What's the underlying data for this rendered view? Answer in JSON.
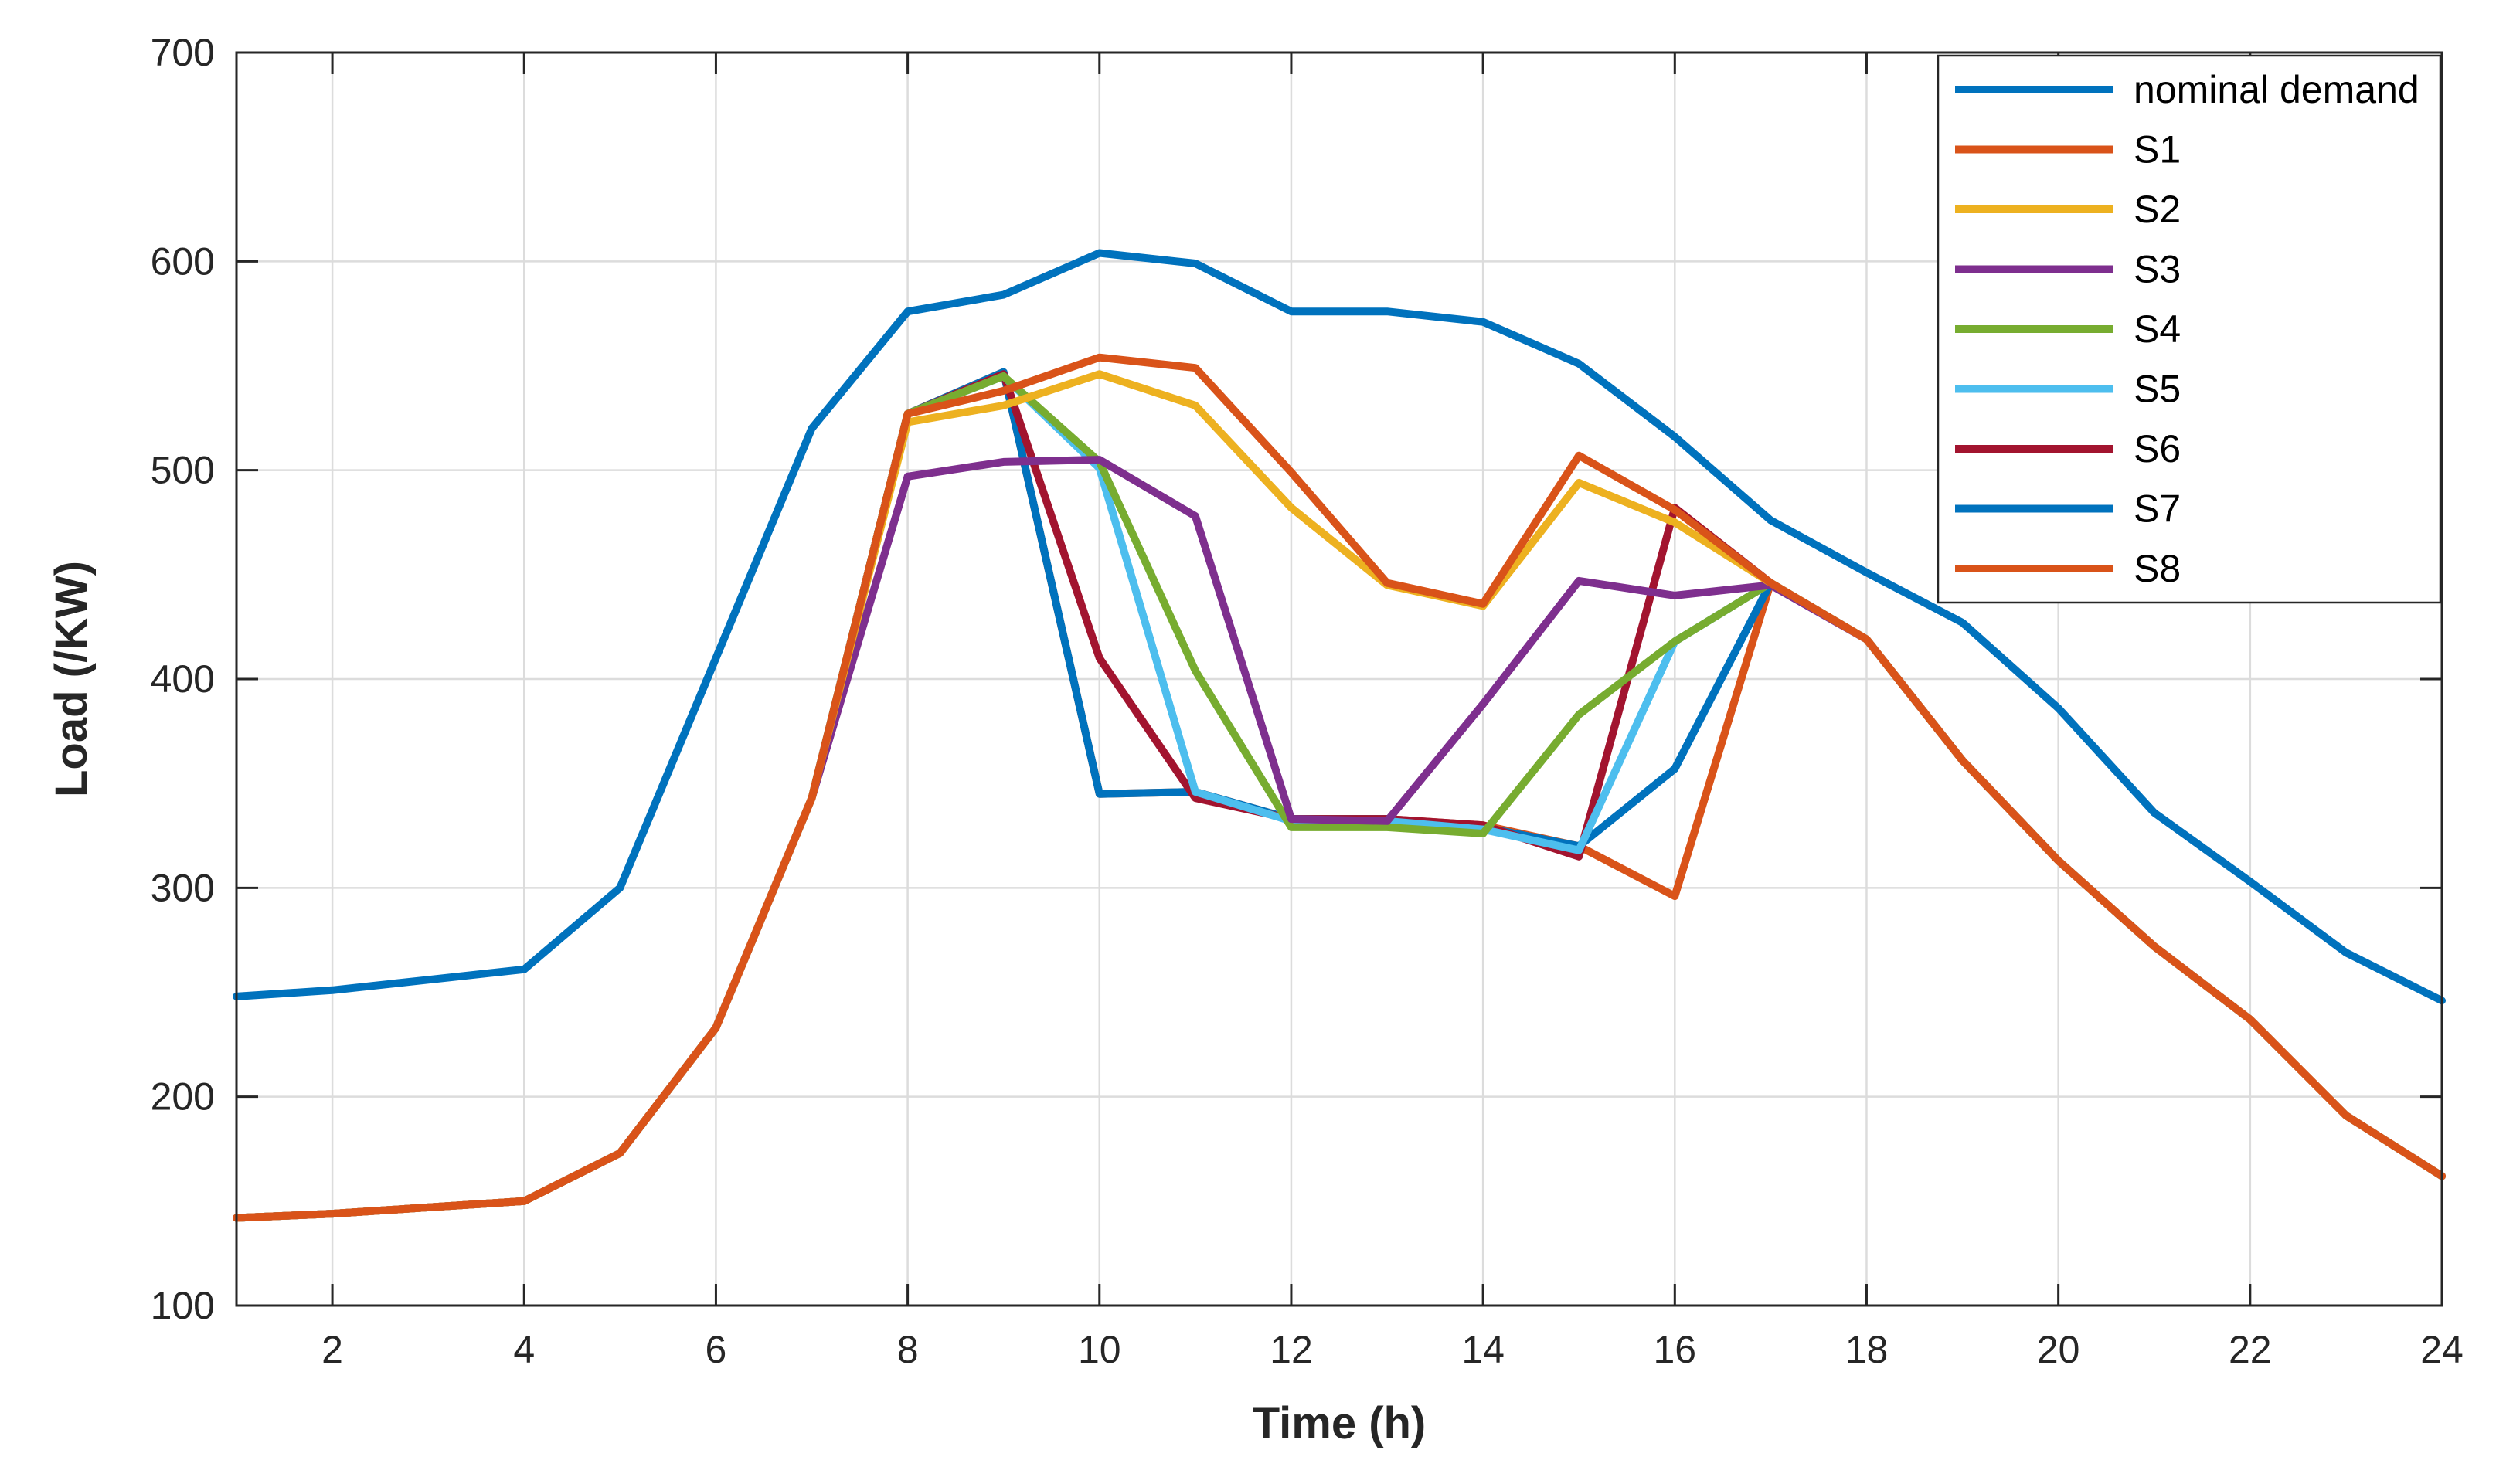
{
  "chart_data": {
    "type": "line",
    "title": "",
    "xlabel": "Time (h)",
    "ylabel": "Load (/KW)",
    "xlim": [
      1,
      24
    ],
    "ylim": [
      100,
      700
    ],
    "xticks": [
      2,
      4,
      6,
      8,
      10,
      12,
      14,
      16,
      18,
      20,
      22,
      24
    ],
    "yticks": [
      100,
      200,
      300,
      400,
      500,
      600,
      700
    ],
    "grid": true,
    "legend_position": "top-right",
    "x": [
      1,
      2,
      3,
      4,
      5,
      6,
      7,
      8,
      9,
      10,
      11,
      12,
      13,
      14,
      15,
      16,
      17,
      18,
      19,
      20,
      21,
      22,
      23,
      24
    ],
    "series": [
      {
        "name": "nominal demand",
        "color": "#0072BD",
        "values": [
          248,
          251,
          256,
          261,
          300,
          410,
          520,
          576,
          584,
          604,
          599,
          576,
          576,
          571,
          551,
          516,
          476,
          451,
          427,
          386,
          336,
          303,
          269,
          246
        ]
      },
      {
        "name": "S1",
        "color": "#D95319",
        "values": [
          142,
          144,
          147,
          150,
          173,
          233,
          343,
          527,
          538,
          554,
          549,
          499,
          446,
          436,
          507,
          481,
          446,
          419,
          361,
          313,
          272,
          237,
          191,
          162
        ]
      },
      {
        "name": "S2",
        "color": "#EDB120",
        "values": [
          142,
          144,
          147,
          150,
          173,
          233,
          343,
          523,
          531,
          546,
          531,
          482,
          445,
          435,
          494,
          475,
          446,
          419,
          361,
          313,
          272,
          237,
          191,
          162
        ]
      },
      {
        "name": "S3",
        "color": "#7E2F8E",
        "values": [
          142,
          144,
          147,
          150,
          173,
          233,
          343,
          497,
          504,
          505,
          478,
          333,
          332,
          388,
          447,
          440,
          445,
          419,
          361,
          313,
          272,
          237,
          191,
          162
        ]
      },
      {
        "name": "S4",
        "color": "#77AC30",
        "values": [
          142,
          144,
          147,
          150,
          173,
          233,
          343,
          527,
          545,
          504,
          404,
          329,
          329,
          326,
          383,
          418,
          446,
          419,
          361,
          313,
          272,
          237,
          191,
          162
        ]
      },
      {
        "name": "S5",
        "color": "#4DBEEE",
        "values": [
          142,
          144,
          147,
          150,
          173,
          233,
          343,
          527,
          545,
          501,
          346,
          332,
          332,
          328,
          318,
          418,
          446,
          419,
          361,
          313,
          272,
          237,
          191,
          162
        ]
      },
      {
        "name": "S6",
        "color": "#A2142F",
        "values": [
          142,
          144,
          147,
          150,
          173,
          233,
          343,
          527,
          546,
          410,
          343,
          333,
          333,
          330,
          315,
          482,
          446,
          419,
          361,
          313,
          272,
          237,
          191,
          162
        ]
      },
      {
        "name": "S7",
        "color": "#0072BD",
        "values": [
          142,
          144,
          147,
          150,
          173,
          233,
          343,
          527,
          547,
          345,
          346,
          333,
          333,
          329,
          320,
          357,
          446,
          419,
          361,
          313,
          272,
          237,
          191,
          162
        ]
      },
      {
        "name": "S8",
        "color": "#D95319",
        "values": [
          142,
          144,
          147,
          150,
          173,
          233,
          343,
          527,
          547,
          345,
          346,
          333,
          333,
          330,
          320,
          296,
          446,
          419,
          361,
          313,
          272,
          237,
          191,
          162
        ]
      }
    ]
  }
}
